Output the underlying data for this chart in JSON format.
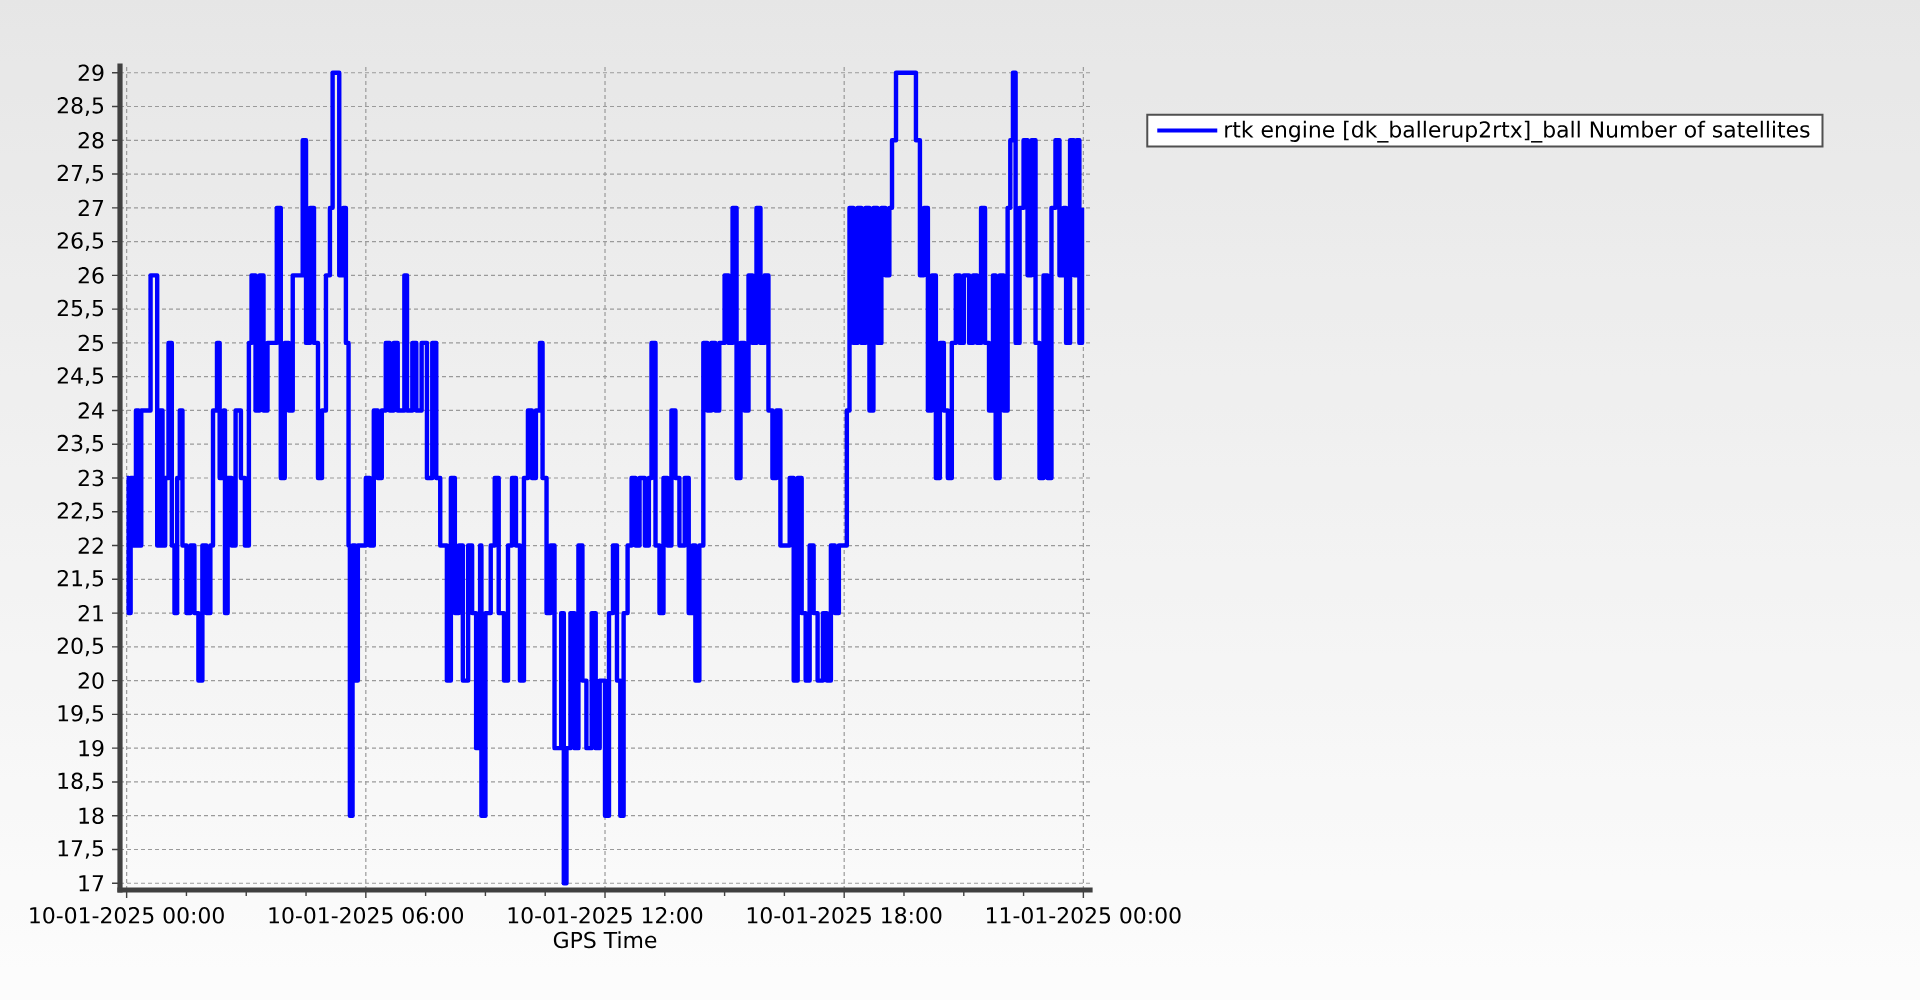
{
  "chart_data": {
    "type": "step",
    "xlabel": "GPS Time",
    "x": [
      "2025-01-10T00:00",
      "2025-01-10T00:03",
      "2025-01-10T00:06",
      "2025-01-10T00:10",
      "2025-01-10T00:14",
      "2025-01-10T00:18",
      "2025-01-10T00:22",
      "2025-01-10T00:30",
      "2025-01-10T00:36",
      "2025-01-10T00:42",
      "2025-01-10T00:46",
      "2025-01-10T00:50",
      "2025-01-10T00:54",
      "2025-01-10T00:58",
      "2025-01-10T01:03",
      "2025-01-10T01:08",
      "2025-01-10T01:12",
      "2025-01-10T01:16",
      "2025-01-10T01:20",
      "2025-01-10T01:24",
      "2025-01-10T01:30",
      "2025-01-10T01:36",
      "2025-01-10T01:42",
      "2025-01-10T01:48",
      "2025-01-10T01:54",
      "2025-01-10T02:00",
      "2025-01-10T02:06",
      "2025-01-10T02:10",
      "2025-01-10T02:16",
      "2025-01-10T02:20",
      "2025-01-10T02:26",
      "2025-01-10T02:28",
      "2025-01-10T02:32",
      "2025-01-10T02:38",
      "2025-01-10T02:44",
      "2025-01-10T02:52",
      "2025-01-10T02:58",
      "2025-01-10T03:04",
      "2025-01-10T03:08",
      "2025-01-10T03:14",
      "2025-01-10T03:20",
      "2025-01-10T03:26",
      "2025-01-10T03:32",
      "2025-01-10T03:40",
      "2025-01-10T03:46",
      "2025-01-10T03:52",
      "2025-01-10T03:58",
      "2025-01-10T04:04",
      "2025-01-10T04:10",
      "2025-01-10T04:18",
      "2025-01-10T04:25",
      "2025-01-10T04:30",
      "2025-01-10T04:36",
      "2025-01-10T04:42",
      "2025-01-10T04:48",
      "2025-01-10T04:54",
      "2025-01-10T05:00",
      "2025-01-10T05:06",
      "2025-01-10T05:10",
      "2025-01-10T05:16",
      "2025-01-10T05:20",
      "2025-01-10T05:26",
      "2025-01-10T05:30",
      "2025-01-10T05:34",
      "2025-01-10T05:36",
      "2025-01-10T05:40",
      "2025-01-10T05:44",
      "2025-01-10T05:48",
      "2025-01-10T05:54",
      "2025-01-10T06:00",
      "2025-01-10T06:06",
      "2025-01-10T06:12",
      "2025-01-10T06:18",
      "2025-01-10T06:24",
      "2025-01-10T06:30",
      "2025-01-10T06:36",
      "2025-01-10T06:42",
      "2025-01-10T06:48",
      "2025-01-10T06:58",
      "2025-01-10T07:02",
      "2025-01-10T07:10",
      "2025-01-10T07:16",
      "2025-01-10T07:24",
      "2025-01-10T07:32",
      "2025-01-10T07:40",
      "2025-01-10T07:46",
      "2025-01-10T07:52",
      "2025-01-10T08:02",
      "2025-01-10T08:08",
      "2025-01-10T08:14",
      "2025-01-10T08:20",
      "2025-01-10T08:26",
      "2025-01-10T08:34",
      "2025-01-10T08:40",
      "2025-01-10T08:46",
      "2025-01-10T08:52",
      "2025-01-10T08:54",
      "2025-01-10T09:00",
      "2025-01-10T09:08",
      "2025-01-10T09:14",
      "2025-01-10T09:20",
      "2025-01-10T09:28",
      "2025-01-10T09:34",
      "2025-01-10T09:40",
      "2025-01-10T09:46",
      "2025-01-10T09:52",
      "2025-01-10T09:58",
      "2025-01-10T10:04",
      "2025-01-10T10:10",
      "2025-01-10T10:16",
      "2025-01-10T10:22",
      "2025-01-10T10:26",
      "2025-01-10T10:32",
      "2025-01-10T10:38",
      "2025-01-10T10:44",
      "2025-01-10T10:50",
      "2025-01-10T10:54",
      "2025-01-10T10:58",
      "2025-01-10T11:02",
      "2025-01-10T11:08",
      "2025-01-10T11:14",
      "2025-01-10T11:20",
      "2025-01-10T11:26",
      "2025-01-10T11:32",
      "2025-01-10T11:40",
      "2025-01-10T11:46",
      "2025-01-10T11:52",
      "2025-01-10T12:00",
      "2025-01-10T12:06",
      "2025-01-10T12:12",
      "2025-01-10T12:18",
      "2025-01-10T12:23",
      "2025-01-10T12:28",
      "2025-01-10T12:34",
      "2025-01-10T12:40",
      "2025-01-10T12:46",
      "2025-01-10T12:52",
      "2025-01-10T13:00",
      "2025-01-10T13:06",
      "2025-01-10T13:10",
      "2025-01-10T13:16",
      "2025-01-10T13:22",
      "2025-01-10T13:28",
      "2025-01-10T13:34",
      "2025-01-10T13:40",
      "2025-01-10T13:46",
      "2025-01-10T13:52",
      "2025-01-10T14:00",
      "2025-01-10T14:06",
      "2025-01-10T14:12",
      "2025-01-10T14:16",
      "2025-01-10T14:22",
      "2025-01-10T14:28",
      "2025-01-10T14:34",
      "2025-01-10T14:40",
      "2025-01-10T14:46",
      "2025-01-10T14:52",
      "2025-01-10T15:00",
      "2025-01-10T15:06",
      "2025-01-10T15:12",
      "2025-01-10T15:18",
      "2025-01-10T15:24",
      "2025-01-10T15:30",
      "2025-01-10T15:36",
      "2025-01-10T15:42",
      "2025-01-10T15:48",
      "2025-01-10T15:54",
      "2025-01-10T16:00",
      "2025-01-10T16:06",
      "2025-01-10T16:12",
      "2025-01-10T16:18",
      "2025-01-10T16:24",
      "2025-01-10T16:32",
      "2025-01-10T16:38",
      "2025-01-10T16:44",
      "2025-01-10T16:50",
      "2025-01-10T16:56",
      "2025-01-10T17:02",
      "2025-01-10T17:08",
      "2025-01-10T17:14",
      "2025-01-10T17:20",
      "2025-01-10T17:28",
      "2025-01-10T17:34",
      "2025-01-10T17:40",
      "2025-01-10T17:46",
      "2025-01-10T17:52",
      "2025-01-10T17:58",
      "2025-01-10T18:04",
      "2025-01-10T18:08",
      "2025-01-10T18:14",
      "2025-01-10T18:20",
      "2025-01-10T18:26",
      "2025-01-10T18:32",
      "2025-01-10T18:38",
      "2025-01-10T18:44",
      "2025-01-10T18:50",
      "2025-01-10T18:56",
      "2025-01-10T19:02",
      "2025-01-10T19:08",
      "2025-01-10T19:12",
      "2025-01-10T19:18",
      "2025-01-10T19:30",
      "2025-01-10T19:42",
      "2025-01-10T19:48",
      "2025-01-10T19:54",
      "2025-01-10T20:00",
      "2025-01-10T20:06",
      "2025-01-10T20:12",
      "2025-01-10T20:18",
      "2025-01-10T20:24",
      "2025-01-10T20:30",
      "2025-01-10T20:36",
      "2025-01-10T20:42",
      "2025-01-10T20:48",
      "2025-01-10T20:54",
      "2025-01-10T21:00",
      "2025-01-10T21:08",
      "2025-01-10T21:14",
      "2025-01-10T21:20",
      "2025-01-10T21:26",
      "2025-01-10T21:32",
      "2025-01-10T21:38",
      "2025-01-10T21:44",
      "2025-01-10T21:48",
      "2025-01-10T21:54",
      "2025-01-10T22:00",
      "2025-01-10T22:06",
      "2025-01-10T22:10",
      "2025-01-10T22:14",
      "2025-01-10T22:18",
      "2025-01-10T22:24",
      "2025-01-10T22:30",
      "2025-01-10T22:36",
      "2025-01-10T22:42",
      "2025-01-10T22:48",
      "2025-01-10T22:54",
      "2025-01-10T23:00",
      "2025-01-10T23:06",
      "2025-01-10T23:12",
      "2025-01-10T23:18",
      "2025-01-10T23:24",
      "2025-01-10T23:30",
      "2025-01-10T23:34",
      "2025-01-10T23:40",
      "2025-01-10T23:46",
      "2025-01-10T23:50",
      "2025-01-10T23:54",
      "2025-01-10T23:58"
    ],
    "series": [
      {
        "name": "rtk engine [dk_ballerup2rtx]_ball Number of satellites",
        "color": "#0000ff",
        "values": [
          23,
          21,
          23,
          22,
          24,
          22,
          24,
          24,
          26,
          26,
          22,
          24,
          22,
          23,
          25,
          22,
          21,
          23,
          24,
          22,
          21,
          22,
          21,
          20,
          22,
          21,
          22,
          24,
          25,
          23,
          24,
          21,
          23,
          22,
          24,
          23,
          22,
          25,
          26,
          24,
          26,
          24,
          25,
          25,
          27,
          23,
          25,
          24,
          26,
          26,
          28,
          25,
          27,
          25,
          23,
          24,
          26,
          27,
          29,
          29,
          26,
          27,
          25,
          22,
          18,
          22,
          20,
          22,
          22,
          23,
          22,
          24,
          23,
          24,
          25,
          24,
          25,
          24,
          26,
          24,
          25,
          24,
          25,
          23,
          25,
          23,
          22,
          20,
          23,
          21,
          22,
          20,
          22,
          21,
          19,
          22,
          18,
          21,
          22,
          23,
          21,
          20,
          22,
          23,
          22,
          20,
          23,
          24,
          23,
          24,
          25,
          23,
          21,
          22,
          19,
          19,
          21,
          17,
          19,
          21,
          19,
          22,
          20,
          19,
          21,
          19,
          20,
          18,
          21,
          22,
          20,
          18,
          21,
          22,
          23,
          22,
          23,
          22,
          23,
          25,
          22,
          21,
          23,
          22,
          24,
          23,
          22,
          23,
          21,
          22,
          20,
          22,
          25,
          24,
          25,
          24,
          25,
          26,
          25,
          27,
          23,
          25,
          24,
          26,
          25,
          27,
          25,
          26,
          24,
          23,
          24,
          22,
          22,
          23,
          20,
          23,
          21,
          20,
          22,
          21,
          20,
          21,
          20,
          22,
          21,
          22,
          22,
          24,
          27,
          25,
          27,
          25,
          27,
          24,
          27,
          25,
          27,
          26,
          27,
          28,
          29,
          29,
          29,
          28,
          26,
          27,
          24,
          26,
          23,
          25,
          24,
          23,
          25,
          26,
          25,
          26,
          25,
          26,
          25,
          27,
          25,
          24,
          26,
          23,
          26,
          24,
          27,
          28,
          29,
          25,
          27,
          28,
          26,
          28,
          25,
          23,
          26,
          23,
          27,
          28,
          26,
          27,
          25,
          28,
          26,
          28,
          25,
          27
        ]
      }
    ],
    "xlim": [
      "2025-01-09T23:50",
      "2025-01-11T00:10"
    ],
    "xticks": [
      {
        "value": "2025-01-10T00:00",
        "label": "10-01-2025 00:00"
      },
      {
        "value": "2025-01-10T01:30",
        "label": null
      },
      {
        "value": "2025-01-10T03:00",
        "label": null
      },
      {
        "value": "2025-01-10T04:30",
        "label": null
      },
      {
        "value": "2025-01-10T06:00",
        "label": "10-01-2025 06:00"
      },
      {
        "value": "2025-01-10T07:30",
        "label": null
      },
      {
        "value": "2025-01-10T09:00",
        "label": null
      },
      {
        "value": "2025-01-10T10:30",
        "label": null
      },
      {
        "value": "2025-01-10T12:00",
        "label": "10-01-2025 12:00"
      },
      {
        "value": "2025-01-10T13:30",
        "label": null
      },
      {
        "value": "2025-01-10T15:00",
        "label": null
      },
      {
        "value": "2025-01-10T16:30",
        "label": null
      },
      {
        "value": "2025-01-10T18:00",
        "label": "10-01-2025 18:00"
      },
      {
        "value": "2025-01-10T19:30",
        "label": null
      },
      {
        "value": "2025-01-10T21:00",
        "label": null
      },
      {
        "value": "2025-01-10T22:30",
        "label": null
      },
      {
        "value": "2025-01-11T00:00",
        "label": "11-01-2025 00:00"
      }
    ],
    "ylim": [
      16.9,
      29.1
    ],
    "yticks": [
      17,
      {
        "value": 17.5,
        "label": "17,5"
      },
      18,
      {
        "value": 18.5,
        "label": "18,5"
      },
      19,
      {
        "value": 19.5,
        "label": "19,5"
      },
      20,
      {
        "value": 20.5,
        "label": "20,5"
      },
      21,
      {
        "value": 21.5,
        "label": "21,5"
      },
      22,
      {
        "value": 22.5,
        "label": "22,5"
      },
      23,
      {
        "value": 23.5,
        "label": "23,5"
      },
      24,
      {
        "value": 24.5,
        "label": "24,5"
      },
      25,
      {
        "value": 25.5,
        "label": "25,5"
      },
      26,
      {
        "value": 26.5,
        "label": "26,5"
      },
      27,
      {
        "value": 27.5,
        "label": "27,5"
      },
      28,
      {
        "value": 28.5,
        "label": "28,5"
      },
      29
    ],
    "grid": true,
    "legend": "top right"
  }
}
